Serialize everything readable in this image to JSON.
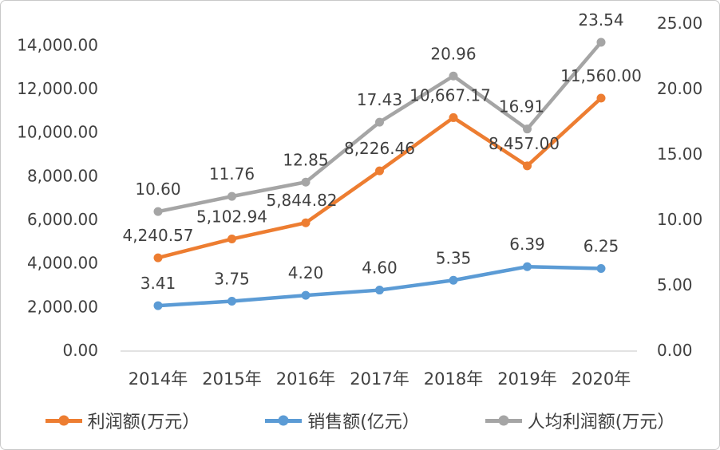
{
  "chart_data": {
    "type": "line",
    "categories": [
      "2014年",
      "2015年",
      "2016年",
      "2017年",
      "2018年",
      "2019年",
      "2020年"
    ],
    "series": [
      {
        "name": "利润额(万元）",
        "axis": "left",
        "color": "#ED7D31",
        "values": [
          4240.57,
          5102.94,
          5844.82,
          8226.46,
          10667.17,
          8457.0,
          11560.0
        ],
        "labels": [
          "4,240.57",
          "5,102.94",
          "5,844.82",
          "8,226.46",
          "10,667.17",
          "8,457.00",
          "11,560.00"
        ]
      },
      {
        "name": "销售额(亿元）",
        "axis": "right",
        "color": "#5B9BD5",
        "values": [
          3.41,
          3.75,
          4.2,
          4.6,
          5.35,
          6.39,
          6.25
        ],
        "labels": [
          "3.41",
          "3.75",
          "4.20",
          "4.60",
          "5.35",
          "6.39",
          "6.25"
        ]
      },
      {
        "name": "人均利润额(万元）",
        "axis": "right",
        "color": "#A5A5A5",
        "values": [
          10.6,
          11.76,
          12.85,
          17.43,
          20.96,
          16.91,
          23.54
        ],
        "labels": [
          "10.60",
          "11.76",
          "12.85",
          "17.43",
          "20.96",
          "16.91",
          "23.54"
        ]
      }
    ],
    "left_axis": {
      "min": 0,
      "max": 15000,
      "tick_values": [
        0,
        2000,
        4000,
        6000,
        8000,
        10000,
        12000,
        14000
      ],
      "tick_labels": [
        "0.00",
        "2,000.00",
        "4,000.00",
        "6,000.00",
        "8,000.00",
        "10,000.00",
        "12,000.00",
        "14,000.00"
      ]
    },
    "right_axis": {
      "min": 0,
      "max": 25,
      "tick_values": [
        0,
        5,
        10,
        15,
        20,
        25
      ],
      "tick_labels": [
        "0.00",
        "5.00",
        "10.00",
        "15.00",
        "20.00",
        "25.00"
      ]
    },
    "title": "",
    "grid": false,
    "legend_position": "bottom",
    "text_color": "#404040",
    "axis_line_color": "#D9D9D9"
  }
}
